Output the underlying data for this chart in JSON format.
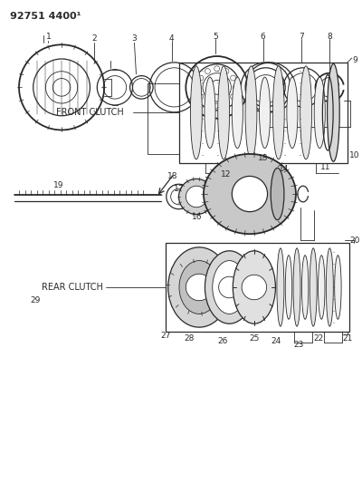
{
  "title": "92751 4400¹",
  "bg_color": "#ffffff",
  "line_color": "#2a2a2a",
  "figsize": [
    4.0,
    5.33
  ],
  "dpi": 100,
  "front_clutch_label": "FRONT CLUTCH",
  "rear_clutch_label": "REAR CLUTCH"
}
